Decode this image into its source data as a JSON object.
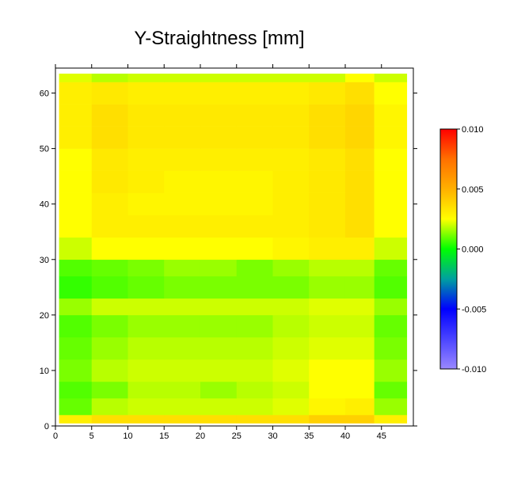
{
  "chart_data": {
    "type": "heatmap",
    "title": "Y-Straightness [mm]",
    "x_edges": [
      0.5,
      5,
      10,
      15,
      20,
      25,
      30,
      35,
      40,
      44,
      48.5
    ],
    "y_edges": [
      0.5,
      2,
      5,
      8,
      12,
      16,
      20,
      23,
      27,
      30,
      34,
      38,
      42,
      46,
      50,
      54,
      58,
      62,
      63.5
    ],
    "z": [
      [
        0.003,
        0.0035,
        0.0035,
        0.0035,
        0.0035,
        0.0035,
        0.0035,
        0.004,
        0.004,
        0.003
      ],
      [
        0.001,
        0.0018,
        0.002,
        0.002,
        0.002,
        0.002,
        0.0022,
        0.0028,
        0.003,
        0.0015
      ],
      [
        0.0008,
        0.0012,
        0.0018,
        0.0018,
        0.0015,
        0.0018,
        0.002,
        0.0025,
        0.0025,
        0.001
      ],
      [
        0.0012,
        0.0018,
        0.002,
        0.002,
        0.002,
        0.002,
        0.0022,
        0.0025,
        0.0025,
        0.0015
      ],
      [
        0.001,
        0.0015,
        0.0018,
        0.0018,
        0.0018,
        0.0018,
        0.002,
        0.0022,
        0.0022,
        0.0012
      ],
      [
        0.0008,
        0.0012,
        0.0015,
        0.0015,
        0.0015,
        0.0015,
        0.0018,
        0.002,
        0.002,
        0.001
      ],
      [
        0.0015,
        0.002,
        0.002,
        0.002,
        0.002,
        0.002,
        0.002,
        0.0022,
        0.0022,
        0.0015
      ],
      [
        0.0005,
        0.0008,
        0.001,
        0.0012,
        0.0012,
        0.0012,
        0.0012,
        0.0015,
        0.0015,
        0.0008
      ],
      [
        0.0008,
        0.001,
        0.0012,
        0.0015,
        0.0015,
        0.0012,
        0.0015,
        0.0018,
        0.0018,
        0.001
      ],
      [
        0.002,
        0.0025,
        0.0025,
        0.0025,
        0.0025,
        0.0025,
        0.0028,
        0.003,
        0.003,
        0.002
      ],
      [
        0.0025,
        0.003,
        0.003,
        0.003,
        0.003,
        0.003,
        0.003,
        0.0032,
        0.0035,
        0.0025
      ],
      [
        0.0025,
        0.003,
        0.0028,
        0.0028,
        0.0028,
        0.0028,
        0.003,
        0.0032,
        0.0035,
        0.0025
      ],
      [
        0.0025,
        0.0032,
        0.003,
        0.0028,
        0.0028,
        0.0028,
        0.003,
        0.0032,
        0.0035,
        0.0025
      ],
      [
        0.0025,
        0.0032,
        0.003,
        0.003,
        0.003,
        0.003,
        0.003,
        0.0032,
        0.0035,
        0.0025
      ],
      [
        0.003,
        0.0035,
        0.0032,
        0.0032,
        0.0032,
        0.0032,
        0.0032,
        0.0035,
        0.0038,
        0.0028
      ],
      [
        0.003,
        0.0035,
        0.0032,
        0.0032,
        0.0032,
        0.0032,
        0.0032,
        0.0035,
        0.0038,
        0.0028
      ],
      [
        0.003,
        0.0032,
        0.003,
        0.003,
        0.003,
        0.003,
        0.003,
        0.0032,
        0.0035,
        0.0025
      ],
      [
        0.0022,
        0.0018,
        0.002,
        0.002,
        0.002,
        0.002,
        0.002,
        0.002,
        0.0025,
        0.002
      ]
    ],
    "xlim": [
      0,
      49.4
    ],
    "ylim": [
      0,
      64.5
    ],
    "xticks": [
      0,
      5,
      10,
      15,
      20,
      25,
      30,
      35,
      40,
      45
    ],
    "yticks": [
      0,
      10,
      20,
      30,
      40,
      50,
      60
    ],
    "zlim": [
      -0.01,
      0.01
    ],
    "zticks": [
      {
        "value": 0.01,
        "label": "0.010"
      },
      {
        "value": 0.005,
        "label": "0.005"
      },
      {
        "value": 0,
        "label": "0.000"
      },
      {
        "value": -0.005,
        "label": "-0.005"
      },
      {
        "value": -0.01,
        "label": "-0.010"
      }
    ],
    "colorscale": [
      [
        -0.01,
        "#9a88ff"
      ],
      [
        -0.0075,
        "#4a44ff"
      ],
      [
        -0.005,
        "#0000ff"
      ],
      [
        -0.0025,
        "#00a0a0"
      ],
      [
        0,
        "#00ff00"
      ],
      [
        0.0025,
        "#ffff00"
      ],
      [
        0.005,
        "#ffb000"
      ],
      [
        0.0075,
        "#ff7000"
      ],
      [
        0.01,
        "#ff0000"
      ]
    ]
  }
}
